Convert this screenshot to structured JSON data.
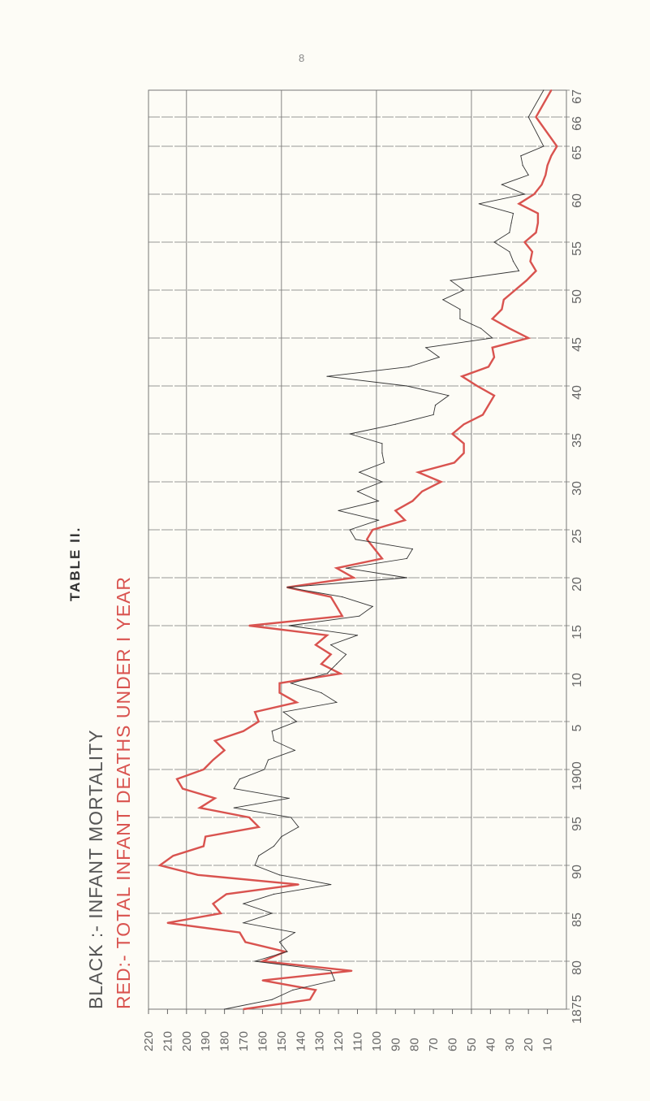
{
  "page_number": "8",
  "chart_data": {
    "type": "line",
    "title": "TABLE II.",
    "orientation": "rotated 90° counter-clockwise (years run bottom to top, values decrease left to right)",
    "legend": [
      {
        "label": "BLACK :- INFANT MORTALITY",
        "color": "#333333"
      },
      {
        "label": "RED:- TOTAL INFANT DEATHS UNDER I YEAR",
        "color": "#d9534f"
      }
    ],
    "x_tick_labels": [
      "1875",
      "80",
      "85",
      "90",
      "95",
      "1900",
      "5",
      "10",
      "15",
      "20",
      "25",
      "30",
      "35",
      "40",
      "45",
      "50",
      "55",
      "60",
      "65",
      "66",
      "67"
    ],
    "x_tick_years": [
      1875,
      1880,
      1885,
      1890,
      1895,
      1900,
      1905,
      1910,
      1915,
      1920,
      1925,
      1930,
      1935,
      1940,
      1945,
      1950,
      1955,
      1960,
      1965,
      1966,
      1967
    ],
    "y_tick_labels": [
      "220",
      "210",
      "200",
      "190",
      "180",
      "170",
      "160",
      "150",
      "140",
      "130",
      "120",
      "110",
      "100",
      "90",
      "80",
      "70",
      "60",
      "50",
      "40",
      "30",
      "20",
      "10"
    ],
    "y_tick_values": [
      220,
      210,
      200,
      190,
      180,
      170,
      160,
      150,
      140,
      130,
      120,
      110,
      100,
      90,
      80,
      70,
      60,
      50,
      40,
      30,
      20,
      10
    ],
    "xlim": [
      1875,
      1967
    ],
    "ylim": [
      0,
      220
    ],
    "grid": true,
    "x": [
      1875,
      1876,
      1877,
      1878,
      1879,
      1880,
      1881,
      1882,
      1883,
      1884,
      1885,
      1886,
      1887,
      1888,
      1889,
      1890,
      1891,
      1892,
      1893,
      1894,
      1895,
      1896,
      1897,
      1898,
      1899,
      1900,
      1901,
      1902,
      1903,
      1904,
      1905,
      1906,
      1907,
      1908,
      1909,
      1910,
      1911,
      1912,
      1913,
      1914,
      1915,
      1916,
      1917,
      1918,
      1919,
      1920,
      1921,
      1922,
      1923,
      1924,
      1925,
      1926,
      1927,
      1928,
      1929,
      1930,
      1931,
      1932,
      1933,
      1934,
      1935,
      1936,
      1937,
      1938,
      1939,
      1940,
      1941,
      1942,
      1943,
      1944,
      1945,
      1946,
      1947,
      1948,
      1949,
      1950,
      1951,
      1952,
      1953,
      1954,
      1955,
      1956,
      1957,
      1958,
      1959,
      1960,
      1961,
      1962,
      1963,
      1964,
      1965,
      1966,
      1967
    ],
    "series": [
      {
        "name": "BLACK :- INFANT MORTALITY",
        "color": "#333333",
        "values": [
          180,
          155,
          144,
          122,
          124,
          164,
          147,
          151,
          143,
          170,
          155,
          170,
          154,
          124,
          151,
          164,
          162,
          154,
          150,
          141,
          145,
          175,
          146,
          175,
          172,
          159,
          157,
          143,
          154,
          155,
          142,
          149,
          121,
          129,
          145,
          126,
          121,
          116,
          124,
          110,
          146,
          109,
          102,
          118,
          147,
          84,
          116,
          84,
          81,
          111,
          114,
          99,
          120,
          99,
          110,
          97,
          109,
          96,
          97,
          97,
          114,
          90,
          70,
          69,
          62,
          84,
          126,
          83,
          67,
          74,
          39,
          45,
          56,
          56,
          65,
          54,
          61,
          25,
          28,
          30,
          38,
          30,
          29,
          28,
          46,
          22,
          34,
          20,
          23,
          24,
          12,
          20,
          12
        ]
      },
      {
        "name": "RED:- TOTAL INFANT DEATHS UNDER I YEAR",
        "color": "#d9534f",
        "values": [
          170,
          135,
          132,
          160,
          113,
          160,
          148,
          169,
          172,
          210,
          182,
          186,
          179,
          141,
          194,
          214,
          207,
          191,
          190,
          162,
          167,
          193,
          185,
          202,
          205,
          191,
          186,
          180,
          185,
          170,
          162,
          164,
          142,
          151,
          151,
          119,
          129,
          124,
          132,
          126,
          167,
          118,
          121,
          124,
          147,
          112,
          121,
          97,
          101,
          105,
          102,
          85,
          90,
          81,
          76,
          66,
          78,
          59,
          54,
          54,
          60,
          54,
          44,
          41,
          38,
          47,
          55,
          41,
          38,
          39,
          20,
          30,
          39,
          34,
          33,
          27,
          21,
          16,
          19,
          18,
          22,
          16,
          15,
          15,
          25,
          17,
          13,
          11,
          10,
          8,
          5,
          16,
          8
        ]
      }
    ]
  }
}
